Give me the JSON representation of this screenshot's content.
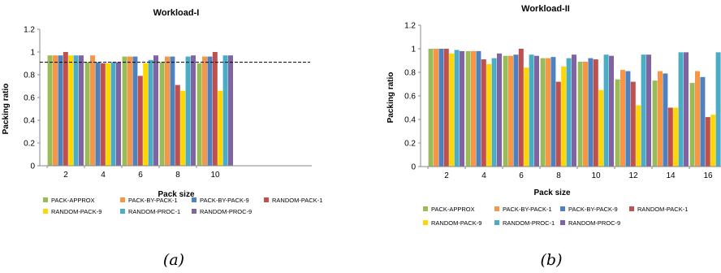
{
  "legend": [
    {
      "name": "PACK-APPROX",
      "color": "#9BBB59"
    },
    {
      "name": "PACK-BY-PACK-1",
      "color": "#F79646"
    },
    {
      "name": "PACK-BY-PACK-9",
      "color": "#4F81BD"
    },
    {
      "name": "RANDOM-PACK-1",
      "color": "#C0504D"
    },
    {
      "name": "RANDOM-PACK-9",
      "color": "#FFD700"
    },
    {
      "name": "RANDOM-PROC-1",
      "color": "#4BACC6"
    },
    {
      "name": "RANDOM-PROC-9",
      "color": "#8064A2"
    }
  ],
  "captions": [
    "(a)",
    "(b)"
  ],
  "chart_data": [
    {
      "type": "bar",
      "title": "Workload-I",
      "xlabel": "Pack size",
      "ylabel": "Packing ratio",
      "ylim": [
        0,
        1.2
      ],
      "yticks": [
        "0",
        "0.2",
        "0.4",
        "0.6",
        "0.8",
        "1",
        "1.2"
      ],
      "categories": [
        "2",
        "4",
        "6",
        "8",
        "10"
      ],
      "reference_line": 0.91,
      "grid": false,
      "legend_position": "bottom",
      "series": [
        {
          "name": "PACK-APPROX",
          "values": [
            0.97,
            0.91,
            0.96,
            0.91,
            0.9
          ]
        },
        {
          "name": "PACK-BY-PACK-1",
          "values": [
            0.97,
            0.97,
            0.96,
            0.96,
            0.96
          ]
        },
        {
          "name": "PACK-BY-PACK-9",
          "values": [
            0.97,
            0.91,
            0.96,
            0.96,
            0.96
          ]
        },
        {
          "name": "RANDOM-PACK-1",
          "values": [
            1.0,
            0.9,
            0.79,
            0.71,
            1.0
          ]
        },
        {
          "name": "RANDOM-PACK-9",
          "values": [
            0.97,
            0.9,
            0.9,
            0.66,
            0.66
          ]
        },
        {
          "name": "RANDOM-PROC-1",
          "values": [
            0.97,
            0.91,
            0.93,
            0.96,
            0.97
          ]
        },
        {
          "name": "RANDOM-PROC-9",
          "values": [
            0.97,
            0.91,
            0.97,
            0.97,
            0.97
          ]
        }
      ]
    },
    {
      "type": "bar",
      "title": "Workload-II",
      "xlabel": "Pack size",
      "ylabel": "Packing ratio",
      "ylim": [
        0,
        1.2
      ],
      "yticks": [
        "0",
        "0.2",
        "0.4",
        "0.6",
        "0.8",
        "1",
        "1.2"
      ],
      "categories": [
        "2",
        "4",
        "6",
        "8",
        "10",
        "12",
        "14",
        "16"
      ],
      "grid": false,
      "legend_position": "bottom",
      "series": [
        {
          "name": "PACK-APPROX",
          "values": [
            1.0,
            0.98,
            0.94,
            0.92,
            0.89,
            0.74,
            0.73,
            0.71
          ]
        },
        {
          "name": "PACK-BY-PACK-1",
          "values": [
            1.0,
            0.98,
            0.94,
            0.92,
            0.89,
            0.82,
            0.81,
            0.81
          ]
        },
        {
          "name": "PACK-BY-PACK-9",
          "values": [
            1.0,
            0.98,
            0.95,
            0.93,
            0.92,
            0.81,
            0.79,
            0.76
          ]
        },
        {
          "name": "RANDOM-PACK-1",
          "values": [
            1.0,
            0.91,
            1.0,
            0.72,
            0.91,
            0.72,
            0.5,
            0.42
          ]
        },
        {
          "name": "RANDOM-PACK-9",
          "values": [
            0.96,
            0.87,
            0.84,
            0.85,
            0.65,
            0.52,
            0.5,
            0.44
          ]
        },
        {
          "name": "RANDOM-PROC-1",
          "values": [
            0.99,
            0.92,
            0.95,
            0.92,
            0.95,
            0.95,
            0.97,
            0.97
          ]
        },
        {
          "name": "RANDOM-PROC-9",
          "values": [
            0.98,
            0.96,
            0.94,
            0.95,
            0.94,
            0.95,
            0.97,
            0.96
          ]
        }
      ]
    }
  ]
}
